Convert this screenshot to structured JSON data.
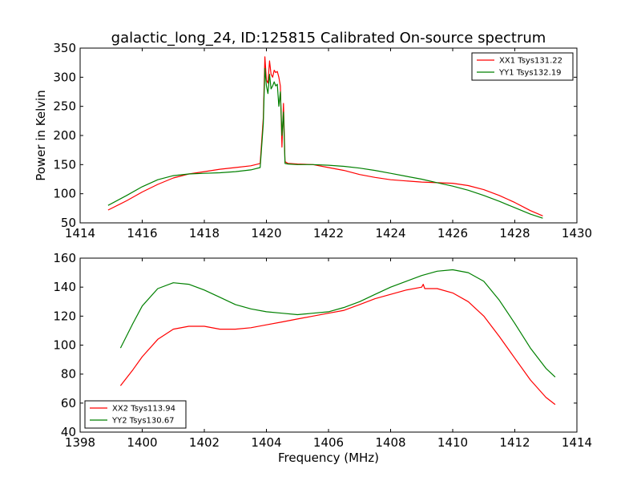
{
  "figure": {
    "title": "galactic_long_24, ID:125815 Calibrated On-source spectrum"
  },
  "chart_data": [
    {
      "type": "line",
      "title": "galactic_long_24, ID:125815 Calibrated On-source spectrum",
      "xlabel": "",
      "ylabel": "Power in Kelvin",
      "xlim": [
        1414,
        1430
      ],
      "ylim": [
        50,
        350
      ],
      "xticks": [
        1414,
        1416,
        1418,
        1420,
        1422,
        1424,
        1426,
        1428,
        1430
      ],
      "yticks": [
        50,
        100,
        150,
        200,
        250,
        300,
        350
      ],
      "grid": false,
      "legend": "top-right",
      "series": [
        {
          "name": "XX1 Tsys131.22",
          "color": "#ff0000",
          "x": [
            1414.9,
            1415.5,
            1416.0,
            1416.5,
            1417.0,
            1417.5,
            1418.0,
            1418.5,
            1419.0,
            1419.5,
            1419.8,
            1419.9,
            1419.95,
            1420.0,
            1420.05,
            1420.1,
            1420.15,
            1420.2,
            1420.25,
            1420.3,
            1420.35,
            1420.4,
            1420.45,
            1420.5,
            1420.55,
            1420.6,
            1420.7,
            1421.0,
            1421.5,
            1422.0,
            1422.5,
            1423.0,
            1423.5,
            1424.0,
            1424.5,
            1425.0,
            1425.5,
            1426.0,
            1426.5,
            1427.0,
            1427.5,
            1428.0,
            1428.5,
            1428.9
          ],
          "y": [
            72,
            88,
            103,
            116,
            127,
            134,
            138,
            142,
            145,
            148,
            152,
            230,
            335,
            295,
            290,
            328,
            305,
            300,
            312,
            308,
            310,
            300,
            285,
            180,
            255,
            155,
            152,
            151,
            150,
            145,
            140,
            133,
            128,
            124,
            122,
            120,
            119,
            118,
            114,
            107,
            97,
            85,
            71,
            62
          ]
        },
        {
          "name": "YY1 Tsys132.19",
          "color": "#008000",
          "x": [
            1414.9,
            1415.5,
            1416.0,
            1416.5,
            1417.0,
            1417.5,
            1418.0,
            1418.5,
            1419.0,
            1419.5,
            1419.8,
            1419.9,
            1419.95,
            1420.0,
            1420.05,
            1420.1,
            1420.15,
            1420.2,
            1420.25,
            1420.3,
            1420.35,
            1420.4,
            1420.45,
            1420.5,
            1420.55,
            1420.6,
            1420.7,
            1421.0,
            1421.5,
            1422.0,
            1422.5,
            1423.0,
            1423.5,
            1424.0,
            1424.5,
            1425.0,
            1425.5,
            1426.0,
            1426.5,
            1427.0,
            1427.5,
            1428.0,
            1428.5,
            1428.9
          ],
          "y": [
            80,
            97,
            112,
            124,
            131,
            134,
            135,
            136,
            138,
            141,
            145,
            220,
            315,
            285,
            272,
            305,
            280,
            285,
            292,
            285,
            288,
            250,
            275,
            200,
            240,
            152,
            151,
            150,
            150,
            149,
            147,
            144,
            140,
            135,
            130,
            125,
            119,
            113,
            106,
            97,
            87,
            76,
            65,
            58
          ]
        }
      ]
    },
    {
      "type": "line",
      "title": "",
      "xlabel": "Frequency (MHz)",
      "ylabel": "",
      "xlim": [
        1398,
        1414
      ],
      "ylim": [
        40,
        160
      ],
      "xticks": [
        1398,
        1400,
        1402,
        1404,
        1406,
        1408,
        1410,
        1412,
        1414
      ],
      "yticks": [
        40,
        60,
        80,
        100,
        120,
        140,
        160
      ],
      "grid": false,
      "legend": "bottom-left",
      "series": [
        {
          "name": "XX2 Tsys113.94",
          "color": "#ff0000",
          "x": [
            1399.3,
            1399.7,
            1400.0,
            1400.5,
            1401.0,
            1401.5,
            1402.0,
            1402.5,
            1403.0,
            1403.5,
            1404.0,
            1404.5,
            1405.0,
            1405.5,
            1406.0,
            1406.5,
            1407.0,
            1407.5,
            1408.0,
            1408.5,
            1409.0,
            1409.05,
            1409.1,
            1409.5,
            1410.0,
            1410.5,
            1411.0,
            1411.5,
            1412.0,
            1412.5,
            1413.0,
            1413.3
          ],
          "y": [
            72,
            83,
            92,
            104,
            111,
            113,
            113,
            111,
            111,
            112,
            114,
            116,
            118,
            120,
            122,
            124,
            128,
            132,
            135,
            138,
            140,
            142,
            139,
            139,
            136,
            130,
            120,
            106,
            91,
            76,
            64,
            59
          ]
        },
        {
          "name": "YY2 Tsys130.67",
          "color": "#008000",
          "x": [
            1399.3,
            1399.7,
            1400.0,
            1400.5,
            1401.0,
            1401.5,
            1402.0,
            1402.5,
            1403.0,
            1403.5,
            1404.0,
            1404.5,
            1405.0,
            1405.5,
            1406.0,
            1406.5,
            1407.0,
            1407.5,
            1408.0,
            1408.5,
            1409.0,
            1409.5,
            1410.0,
            1410.5,
            1411.0,
            1411.5,
            1412.0,
            1412.5,
            1413.0,
            1413.3
          ],
          "y": [
            98,
            115,
            127,
            139,
            143,
            142,
            138,
            133,
            128,
            125,
            123,
            122,
            121,
            122,
            123,
            126,
            130,
            135,
            140,
            144,
            148,
            151,
            152,
            150,
            144,
            131,
            115,
            98,
            84,
            78
          ]
        }
      ]
    }
  ]
}
